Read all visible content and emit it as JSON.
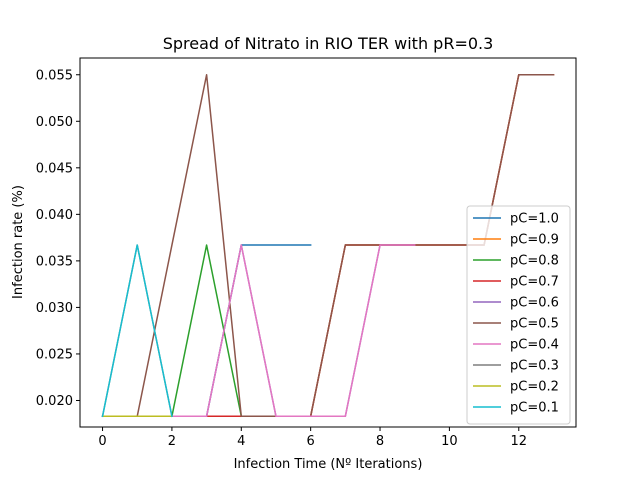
{
  "chart_data": {
    "type": "line",
    "title": "Spread of Nitrato in RIO TER with pR=0.3",
    "xlabel": "Infection Time (Nº Iterations)",
    "ylabel": "Infection rate (%)",
    "xlim": [
      -0.65,
      13.65
    ],
    "ylim": [
      0.01715,
      0.0568
    ],
    "xticks": [
      0,
      2,
      4,
      6,
      8,
      10,
      12
    ],
    "yticks": [
      0.02,
      0.025,
      0.03,
      0.035,
      0.04,
      0.045,
      0.05,
      0.055
    ],
    "ytick_labels": [
      "0.020",
      "0.025",
      "0.030",
      "0.035",
      "0.040",
      "0.045",
      "0.050",
      "0.055"
    ],
    "grid": false,
    "legend_position": "lower right",
    "series": [
      {
        "name": "pC=1.0",
        "color": "#1f77b4",
        "x": [
          0,
          1,
          2,
          3,
          4,
          5,
          6
        ],
        "y": [
          0.0183,
          0.0183,
          0.0183,
          0.0183,
          0.0367,
          0.0367,
          0.0367
        ]
      },
      {
        "name": "pC=0.9",
        "color": "#ff7f0e",
        "x": [
          0,
          1,
          2,
          3,
          4,
          5,
          6,
          7,
          8,
          9,
          10,
          11,
          12,
          13
        ],
        "y": [
          0.0183,
          0.0183,
          0.0183,
          0.0183,
          0.0183,
          0.0183,
          0.0183,
          0.0367,
          0.0367,
          0.0367,
          0.0367,
          0.0367,
          0.055,
          0.055
        ]
      },
      {
        "name": "pC=0.8",
        "color": "#2ca02c",
        "x": [
          0,
          1,
          2,
          3,
          4
        ],
        "y": [
          0.0183,
          0.0183,
          0.0183,
          0.0367,
          0.0183
        ]
      },
      {
        "name": "pC=0.7",
        "color": "#d62728",
        "x": [
          0,
          1,
          2,
          3,
          4,
          5,
          6,
          7,
          8,
          9,
          10,
          11,
          12,
          13
        ],
        "y": [
          0.0183,
          0.0183,
          0.0183,
          0.0183,
          0.0183,
          0.0183,
          0.0183,
          0.0367,
          0.0367,
          0.0367,
          0.0367,
          0.0367,
          0.055,
          0.055
        ]
      },
      {
        "name": "pC=0.6",
        "color": "#9467bd",
        "x": [
          0,
          1,
          2,
          3,
          4,
          5,
          6,
          7,
          8,
          9
        ],
        "y": [
          0.0183,
          0.0183,
          0.0183,
          0.0183,
          0.0367,
          0.0183,
          0.0183,
          0.0183,
          0.0367,
          0.0367
        ]
      },
      {
        "name": "pC=0.5",
        "color": "#8c564b",
        "x": [
          0,
          1,
          2,
          3,
          4,
          5,
          6,
          7,
          8,
          9,
          10,
          11,
          12,
          13
        ],
        "y": [
          0.0183,
          0.0183,
          0.0367,
          0.055,
          0.0183,
          0.0183,
          0.0183,
          0.0367,
          0.0367,
          0.0367,
          0.0367,
          0.0367,
          0.055,
          0.055
        ]
      },
      {
        "name": "pC=0.4",
        "color": "#e377c2",
        "x": [
          0,
          1,
          2,
          3,
          4,
          5,
          6,
          7,
          8,
          9
        ],
        "y": [
          0.0183,
          0.0183,
          0.0183,
          0.0183,
          0.0367,
          0.0183,
          0.0183,
          0.0183,
          0.0367,
          0.0367
        ]
      },
      {
        "name": "pC=0.3",
        "color": "#7f7f7f",
        "x": [
          0,
          1,
          2
        ],
        "y": [
          0.0183,
          0.0367,
          0.0183
        ]
      },
      {
        "name": "pC=0.2",
        "color": "#bcbd22",
        "x": [
          0,
          1,
          2
        ],
        "y": [
          0.0183,
          0.0183,
          0.0183
        ]
      },
      {
        "name": "pC=0.1",
        "color": "#17becf",
        "x": [
          0,
          1,
          2
        ],
        "y": [
          0.0183,
          0.0367,
          0.0183
        ]
      }
    ]
  }
}
